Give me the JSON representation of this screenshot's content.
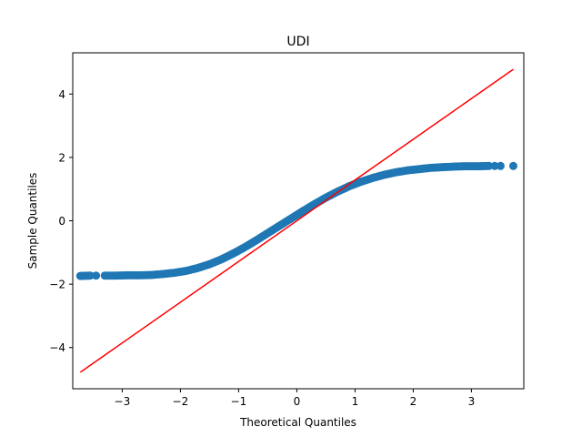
{
  "chart_data": {
    "type": "scatter",
    "title": "UDI",
    "xlabel": "Theoretical Quantiles",
    "ylabel": "Sample Quantiles",
    "xlim": [
      -3.85,
      3.9
    ],
    "ylim": [
      -5.3,
      5.3
    ],
    "xticks": [
      -3,
      -2,
      -1,
      0,
      1,
      2,
      3
    ],
    "yticks": [
      -4,
      -2,
      0,
      2,
      4
    ],
    "xtick_labels": [
      "−3",
      "−2",
      "−1",
      "0",
      "1",
      "2",
      "3"
    ],
    "ytick_labels": [
      "−4",
      "−2",
      "0",
      "2",
      "4"
    ],
    "grid": false,
    "series": [
      {
        "kind": "scatter",
        "color": "#1f77b4",
        "x": [
          -3.72,
          -3.55,
          -3.45,
          -3.3,
          -3.1,
          -2.9,
          -2.7,
          -2.5,
          -2.3,
          -2.1,
          -1.9,
          -1.7,
          -1.5,
          -1.3,
          -1.1,
          -0.9,
          -0.7,
          -0.5,
          -0.3,
          -0.1,
          0.1,
          0.3,
          0.5,
          0.7,
          0.9,
          1.1,
          1.3,
          1.5,
          1.7,
          1.9,
          2.1,
          2.3,
          2.5,
          2.7,
          2.9,
          3.1,
          3.3,
          3.4,
          3.5,
          3.72
        ],
        "y": [
          -1.74,
          -1.73,
          -1.73,
          -1.73,
          -1.73,
          -1.72,
          -1.72,
          -1.71,
          -1.68,
          -1.64,
          -1.58,
          -1.49,
          -1.37,
          -1.22,
          -1.04,
          -0.84,
          -0.62,
          -0.39,
          -0.16,
          0.07,
          0.3,
          0.52,
          0.73,
          0.92,
          1.09,
          1.23,
          1.35,
          1.45,
          1.53,
          1.59,
          1.63,
          1.67,
          1.69,
          1.71,
          1.72,
          1.72,
          1.73,
          1.73,
          1.73,
          1.73
        ]
      },
      {
        "kind": "line",
        "color": "#ff0000",
        "x": [
          -3.72,
          3.72
        ],
        "y": [
          -4.78,
          4.78
        ]
      }
    ]
  }
}
